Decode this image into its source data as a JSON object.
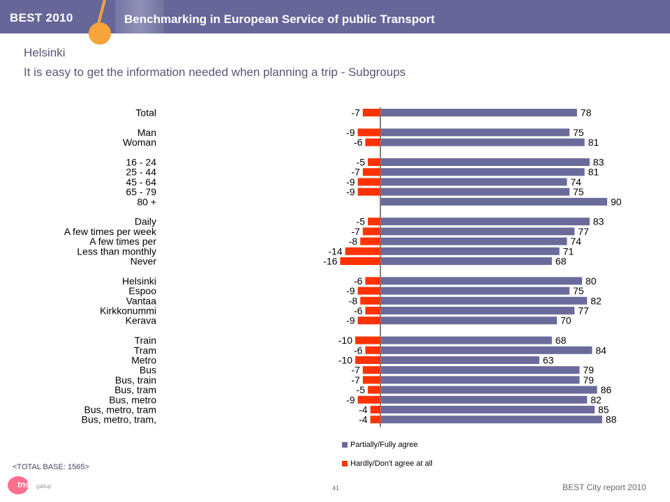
{
  "header": {
    "brand": "BEST 2010",
    "title": "Benchmarking in European Service of public Transport"
  },
  "slide": {
    "city": "Helsinki",
    "question": "It is easy to get the information needed when planning a trip - Subgroups",
    "total_base": "<TOTAL BASE: 1565>",
    "page_number": "41",
    "report_label": "BEST City report 2010",
    "logo_text": "tns",
    "logo_sub": "gallup"
  },
  "colors": {
    "banner": "#666699",
    "agree": "#6B6B9B",
    "disagree": "#FF3300",
    "accent_orange": "#F7A43A"
  },
  "chart_data": {
    "type": "bar",
    "orientation": "horizontal-diverging",
    "categories": [
      {
        "label": "Total",
        "row": 0
      },
      {
        "label": "Man",
        "row": 2
      },
      {
        "label": "Woman",
        "row": 3
      },
      {
        "label": "16 - 24",
        "row": 5
      },
      {
        "label": "25 - 44",
        "row": 6
      },
      {
        "label": "45 - 64",
        "row": 7
      },
      {
        "label": "65 - 79",
        "row": 8
      },
      {
        "label": "80 +",
        "row": 9
      },
      {
        "label": "Daily",
        "row": 11
      },
      {
        "label": "A few times per week",
        "row": 12
      },
      {
        "label": "A few times per",
        "row": 13
      },
      {
        "label": "Less than monthly",
        "row": 14
      },
      {
        "label": "Never",
        "row": 15
      },
      {
        "label": "Helsinki",
        "row": 17
      },
      {
        "label": "Espoo",
        "row": 18
      },
      {
        "label": "Vantaa",
        "row": 19
      },
      {
        "label": "Kirkkonummi",
        "row": 20
      },
      {
        "label": "Kerava",
        "row": 21
      },
      {
        "label": "Train",
        "row": 23
      },
      {
        "label": "Tram",
        "row": 24
      },
      {
        "label": "Metro",
        "row": 25
      },
      {
        "label": "Bus",
        "row": 26
      },
      {
        "label": "Bus, train",
        "row": 27
      },
      {
        "label": "Bus, tram",
        "row": 28
      },
      {
        "label": "Bus, metro",
        "row": 29
      },
      {
        "label": "Bus, metro, tram",
        "row": 30
      },
      {
        "label": "Bus, metro, tram,",
        "row": 31
      }
    ],
    "series": [
      {
        "name": "Partially/Fully agree",
        "color": "#6B6B9B",
        "values": [
          78,
          75,
          81,
          83,
          81,
          74,
          75,
          90,
          83,
          77,
          74,
          71,
          68,
          80,
          75,
          82,
          77,
          70,
          68,
          84,
          63,
          79,
          79,
          86,
          82,
          85,
          88
        ]
      },
      {
        "name": "Hardly/Don't agree at all",
        "color": "#FF3300",
        "values": [
          -7,
          -9,
          -6,
          -5,
          -7,
          -9,
          -9,
          null,
          -5,
          -7,
          -8,
          -14,
          -16,
          -6,
          -9,
          -8,
          -6,
          -9,
          -10,
          -6,
          -10,
          -7,
          -7,
          -5,
          -9,
          -4,
          -4
        ]
      }
    ],
    "legend": {
      "placement": "bottom",
      "items": [
        "Partially/Fully agree",
        "Hardly/Don't agree at all"
      ]
    }
  }
}
